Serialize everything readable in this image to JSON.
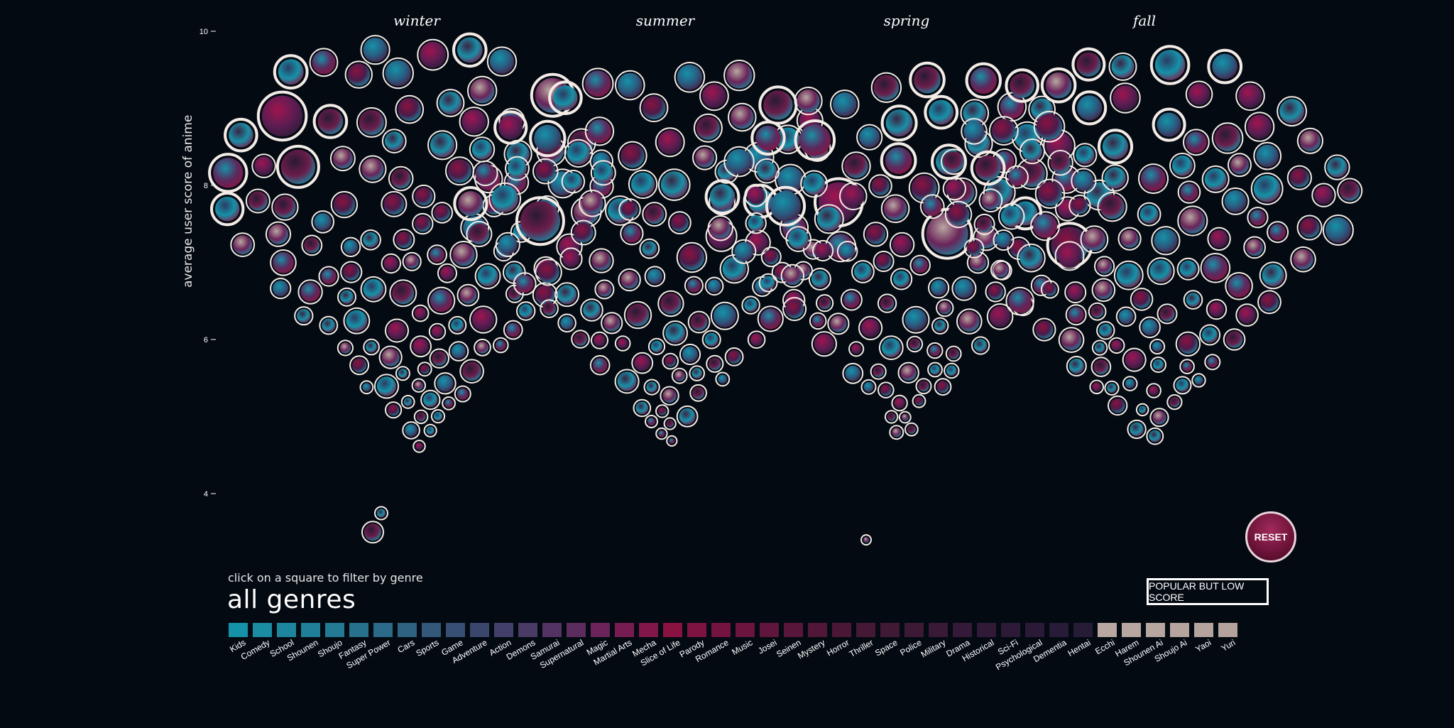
{
  "seasons": [
    "winter",
    "summer",
    "spring",
    "fall"
  ],
  "filter": {
    "hint": "click on a square to filter by genre",
    "current": "all genres"
  },
  "buttons": {
    "popular_low": "POPULAR BUT LOW SCORE",
    "reset": "RESET"
  },
  "colors": {
    "background": "#040a12",
    "teal": "#1592a8",
    "crimson": "#8a1240",
    "dark_purple": "#2a1a35",
    "beige": "#b9a7a1"
  },
  "chart_data": {
    "type": "scatter",
    "title": "",
    "xlabel": "",
    "ylabel": "average user score of anime",
    "ylim": [
      3,
      10
    ],
    "yticks": [
      "10",
      "8",
      "6",
      "4"
    ],
    "yticks_values": [
      10,
      8,
      6,
      4
    ],
    "categories": [
      "winter",
      "summer",
      "spring",
      "fall"
    ],
    "outliers": [
      {
        "season": "winter",
        "y": 3.7,
        "size": "small"
      },
      {
        "season": "winter",
        "y": 3.5,
        "size": "medium"
      },
      {
        "season": "spring",
        "y": 3.4,
        "size": "tiny"
      }
    ],
    "genres": [
      {
        "name": "Kids",
        "color": "#1592a8"
      },
      {
        "name": "Comedy",
        "color": "#1a8ca3"
      },
      {
        "name": "School",
        "color": "#1d869e"
      },
      {
        "name": "Shounen",
        "color": "#20809a"
      },
      {
        "name": "Shoujo",
        "color": "#237a95"
      },
      {
        "name": "Fantasy",
        "color": "#27718d"
      },
      {
        "name": "Super Power",
        "color": "#2b6a88"
      },
      {
        "name": "Cars",
        "color": "#2f6181"
      },
      {
        "name": "Sports",
        "color": "#33587a"
      },
      {
        "name": "Game",
        "color": "#374f73"
      },
      {
        "name": "Adventure",
        "color": "#3b466c"
      },
      {
        "name": "Action",
        "color": "#42406a"
      },
      {
        "name": "Demons",
        "color": "#4a3a66"
      },
      {
        "name": "Samurai",
        "color": "#533363"
      },
      {
        "name": "Supernatural",
        "color": "#5c2c5e"
      },
      {
        "name": "Magic",
        "color": "#6a2459"
      },
      {
        "name": "Martial Arts",
        "color": "#771c52"
      },
      {
        "name": "Mecha",
        "color": "#82164a"
      },
      {
        "name": "Slice of Life",
        "color": "#8a1240"
      },
      {
        "name": "Parody",
        "color": "#7e1240"
      },
      {
        "name": "Romance",
        "color": "#741340"
      },
      {
        "name": "Music",
        "color": "#6a143e"
      },
      {
        "name": "Josei",
        "color": "#60153c"
      },
      {
        "name": "Seinen",
        "color": "#58163a"
      },
      {
        "name": "Mystery",
        "color": "#501738"
      },
      {
        "name": "Horror",
        "color": "#4a1836"
      },
      {
        "name": "Thriller",
        "color": "#451935"
      },
      {
        "name": "Space",
        "color": "#401a35"
      },
      {
        "name": "Police",
        "color": "#3c1a36"
      },
      {
        "name": "Military",
        "color": "#381a37"
      },
      {
        "name": "Drama",
        "color": "#341a38"
      },
      {
        "name": "Historical",
        "color": "#301a38"
      },
      {
        "name": "Sci-Fi",
        "color": "#2c1a37"
      },
      {
        "name": "Psychological",
        "color": "#2a1a38"
      },
      {
        "name": "Dementia",
        "color": "#271b38"
      },
      {
        "name": "Hentai",
        "color": "#261c36"
      },
      {
        "name": "Ecchi",
        "color": "#b9a7a1"
      },
      {
        "name": "Harem",
        "color": "#b8a6a0"
      },
      {
        "name": "Shounen Ai",
        "color": "#b7a59f"
      },
      {
        "name": "Shoujo Ai",
        "color": "#b6a49e"
      },
      {
        "name": "Yaoi",
        "color": "#b5a39d"
      },
      {
        "name": "Yuri",
        "color": "#b4a29c"
      }
    ]
  }
}
